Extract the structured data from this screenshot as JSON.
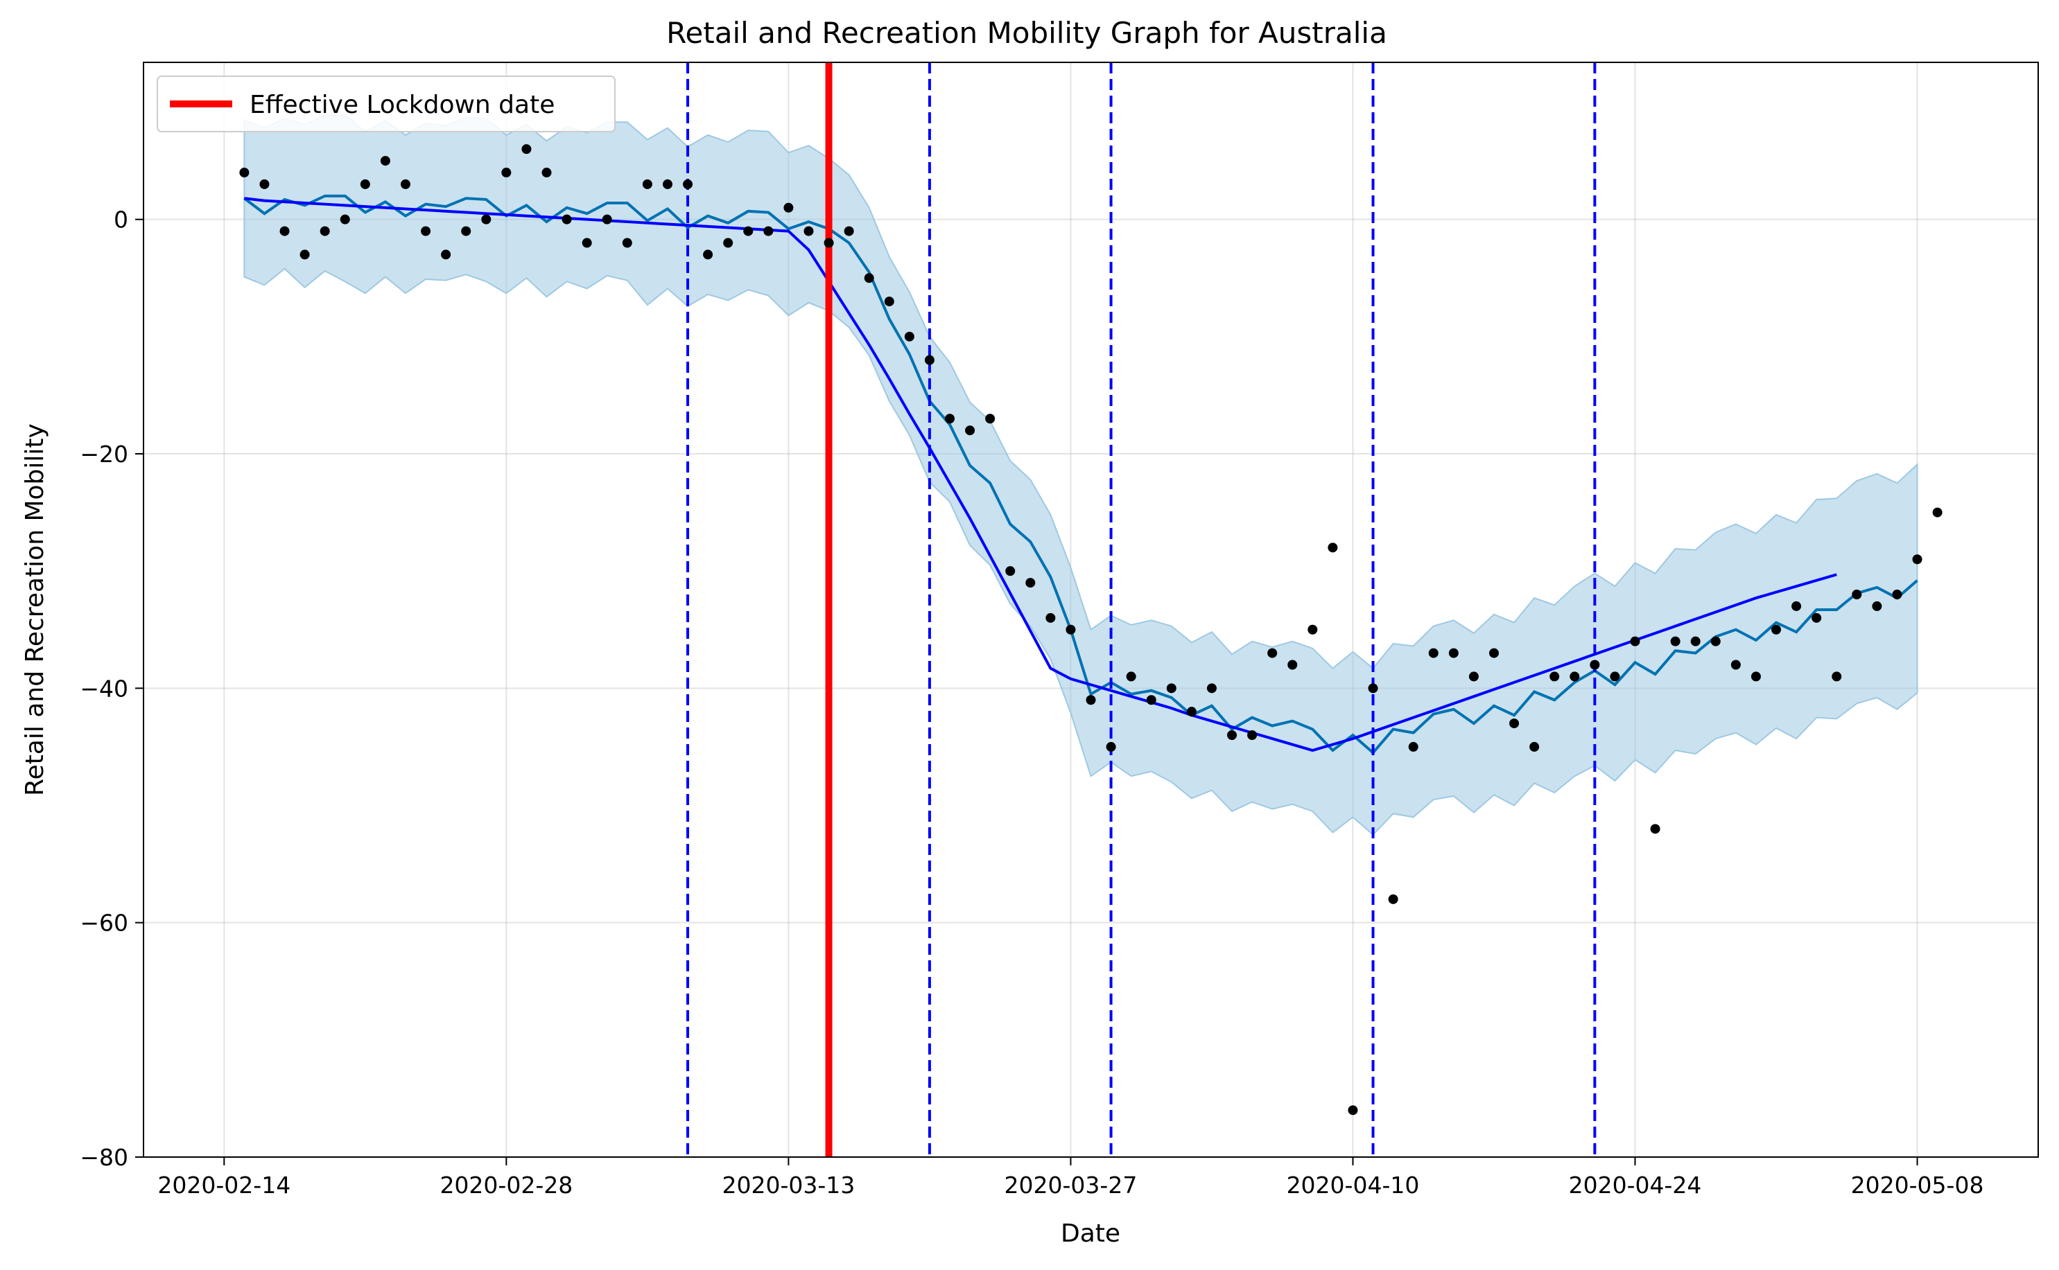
{
  "chart_data": {
    "type": "line",
    "title": "Retail and Recreation Mobility Graph for Australia",
    "xlabel": "Date",
    "ylabel": "Retail and Recreation Mobility",
    "x_start": "2020-02-15",
    "x_ticks": [
      "2020-02-14",
      "2020-02-28",
      "2020-03-13",
      "2020-03-27",
      "2020-04-10",
      "2020-04-24",
      "2020-05-08"
    ],
    "y_ticks": [
      0,
      -20,
      -40,
      -60,
      -80
    ],
    "xlim": [
      "2020-02-10",
      "2020-05-14"
    ],
    "ylim": [
      -80,
      13.4
    ],
    "grid": true,
    "legend": {
      "position": "top-left",
      "entries": [
        {
          "label": "Effective Lockdown date",
          "color": "#ff0000"
        }
      ]
    },
    "lockdown_date": "2020-03-15",
    "changepoint_dates": [
      "2020-03-08",
      "2020-03-20",
      "2020-03-29",
      "2020-04-11",
      "2020-04-22"
    ],
    "colors": {
      "points": "#000000",
      "prediction": "#0072b2",
      "trend": "#0000ff",
      "interval": "#9ec9e2",
      "lockdown": "#ff0000",
      "changepoint": "#0000ff"
    },
    "series": [
      {
        "type": "scatter",
        "values": [
          4,
          3,
          -1,
          -3,
          -1,
          0,
          3,
          5,
          3,
          -1,
          -3,
          -1,
          0,
          4,
          6,
          4,
          0,
          -2,
          0,
          -2,
          3,
          3,
          3,
          -3,
          -2,
          -1,
          -1,
          1,
          -1,
          -2,
          -1,
          -5,
          -7,
          -10,
          -12,
          -17,
          -18,
          -17,
          -30,
          -31,
          -34,
          -35,
          -41,
          -45,
          -39,
          -41,
          -40,
          -42,
          -40,
          -44,
          -44,
          -37,
          -38,
          -35,
          -28,
          -76,
          -40,
          -58,
          -45,
          -37,
          -37,
          -39,
          -37,
          -43,
          -45,
          -39,
          -39,
          -38,
          -39,
          -36,
          -52,
          -36,
          -36,
          -36,
          -38,
          -39,
          -35,
          -33,
          -34,
          -39,
          -32,
          -33,
          -32,
          -29,
          -25
        ]
      },
      {
        "type": "line",
        "values": [
          1.8,
          0.5,
          1.7,
          1.2,
          2.0,
          2.0,
          0.6,
          1.5,
          0.3,
          1.3,
          1.1,
          1.8,
          1.7,
          0.3,
          1.2,
          -0.2,
          1.0,
          0.5,
          1.4,
          1.4,
          -0.1,
          0.9,
          -0.7,
          0.3,
          -0.3,
          0.7,
          0.6,
          -0.8,
          -0.2,
          -0.8,
          -2.0,
          -4.5,
          -8.5,
          -11.5,
          -15.5,
          -17.5,
          -21.0,
          -22.5,
          -26.0,
          -27.5,
          -30.5,
          -35.0,
          -40.5,
          -39.5,
          -40.5,
          -40.2,
          -40.8,
          -42.3,
          -41.5,
          -43.5,
          -42.5,
          -43.2,
          -42.8,
          -43.5,
          -45.3,
          -44.0,
          -45.5,
          -43.5,
          -43.8,
          -42.2,
          -41.8,
          -43.0,
          -41.5,
          -42.3,
          -40.3,
          -41.0,
          -39.5,
          -38.5,
          -39.7,
          -37.8,
          -38.8,
          -36.8,
          -37.0,
          -35.6,
          -35.0,
          -35.9,
          -34.4,
          -35.2,
          -33.3,
          -33.3,
          -31.9,
          -31.4,
          -32.3,
          -30.8
        ]
      },
      {
        "type": "line",
        "values": [
          1.8,
          1.6,
          1.5,
          1.4,
          1.3,
          1.2,
          1.1,
          1.0,
          0.9,
          0.8,
          0.7,
          0.6,
          0.5,
          0.4,
          0.3,
          0.2,
          0.1,
          0.0,
          -0.1,
          -0.2,
          -0.3,
          -0.4,
          -0.5,
          -0.6,
          -0.7,
          -0.8,
          -0.9,
          -1.0,
          -2.6,
          -5.3,
          -8.0,
          -10.7,
          -13.6,
          -16.6,
          -19.5,
          -22.5,
          -25.5,
          -28.7,
          -31.9,
          -35.1,
          -38.3,
          -39.2,
          -39.7,
          -40.2,
          -40.7,
          -41.2,
          -41.7,
          -42.3,
          -42.8,
          -43.3,
          -43.8,
          -44.3,
          -44.8,
          -45.3,
          -44.8,
          -44.3,
          -43.7,
          -43.1,
          -42.5,
          -41.9,
          -41.3,
          -40.7,
          -40.1,
          -39.5,
          -38.9,
          -38.3,
          -37.7,
          -37.1,
          -36.5,
          -35.9,
          -35.3,
          -34.7,
          -34.1,
          -33.5,
          -32.9,
          -32.3,
          -31.8,
          -31.3,
          -30.8,
          -30.3
        ]
      }
    ],
    "interval": {
      "upper": [
        8.5,
        7.8,
        8.6,
        8.1,
        8.9,
        8.9,
        7.5,
        8.4,
        7.2,
        8.2,
        8.0,
        8.7,
        8.6,
        7.2,
        8.1,
        6.7,
        7.9,
        7.4,
        8.3,
        8.3,
        6.8,
        7.8,
        6.2,
        7.2,
        6.6,
        7.6,
        7.5,
        5.7,
        6.3,
        5.2,
        3.8,
        1.0,
        -3.2,
        -6.2,
        -10.0,
        -12.2,
        -15.6,
        -17.2,
        -20.6,
        -22.2,
        -25.2,
        -29.7,
        -35.0,
        -33.8,
        -34.6,
        -34.2,
        -34.7,
        -36.1,
        -35.2,
        -37.1,
        -36.0,
        -36.5,
        -36.0,
        -36.6,
        -38.3,
        -36.9,
        -38.3,
        -36.2,
        -36.4,
        -34.7,
        -34.2,
        -35.3,
        -33.7,
        -34.4,
        -32.3,
        -32.9,
        -31.3,
        -30.2,
        -31.3,
        -29.3,
        -30.2,
        -28.1,
        -28.2,
        -26.7,
        -26.0,
        -26.8,
        -25.2,
        -25.9,
        -23.9,
        -23.8,
        -22.3,
        -21.7,
        -22.5,
        -20.9
      ],
      "lower": [
        -4.9,
        -5.6,
        -4.2,
        -5.8,
        -4.4,
        -5.3,
        -6.3,
        -4.9,
        -6.3,
        -5.1,
        -5.2,
        -4.7,
        -5.3,
        -6.3,
        -5.0,
        -6.6,
        -5.3,
        -5.9,
        -4.8,
        -5.2,
        -7.3,
        -5.9,
        -7.4,
        -6.4,
        -6.9,
        -6.0,
        -6.5,
        -8.2,
        -7.1,
        -7.8,
        -9.2,
        -11.6,
        -15.5,
        -18.4,
        -22.4,
        -24.1,
        -27.8,
        -29.5,
        -32.8,
        -34.7,
        -37.5,
        -42.1,
        -47.5,
        -46.3,
        -47.5,
        -47.1,
        -48.0,
        -49.4,
        -48.7,
        -50.5,
        -49.7,
        -50.3,
        -49.9,
        -50.5,
        -52.3,
        -51.0,
        -52.5,
        -50.7,
        -51.0,
        -49.5,
        -49.2,
        -50.6,
        -49.1,
        -50.0,
        -48.1,
        -48.9,
        -47.5,
        -46.6,
        -47.9,
        -46.1,
        -47.2,
        -45.3,
        -45.6,
        -44.3,
        -43.8,
        -44.8,
        -43.4,
        -44.3,
        -42.5,
        -42.6,
        -41.3,
        -40.8,
        -41.8,
        -40.4
      ]
    }
  }
}
